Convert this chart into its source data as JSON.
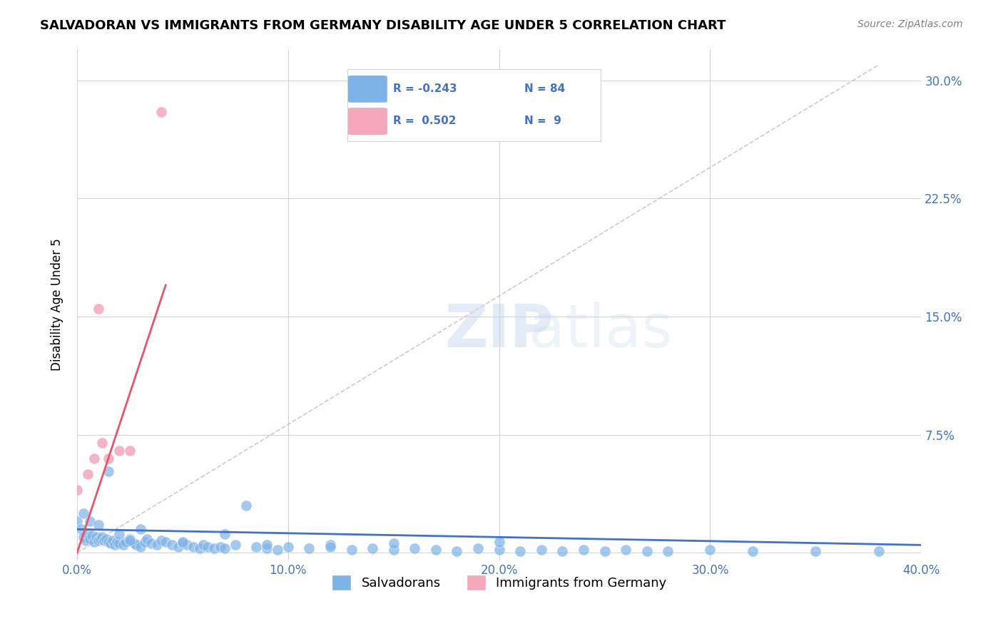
{
  "title": "SALVADORAN VS IMMIGRANTS FROM GERMANY DISABILITY AGE UNDER 5 CORRELATION CHART",
  "source": "Source: ZipAtlas.com",
  "xlabel": "",
  "ylabel": "Disability Age Under 5",
  "xlim": [
    0.0,
    0.4
  ],
  "ylim": [
    -0.005,
    0.32
  ],
  "xticks": [
    0.0,
    0.1,
    0.2,
    0.3,
    0.4
  ],
  "xticklabels": [
    "0.0%",
    "10.0%",
    "20.0%",
    "30.0%",
    "40.0%"
  ],
  "yticks": [
    0.0,
    0.075,
    0.15,
    0.225,
    0.3
  ],
  "yticklabels": [
    "",
    "7.5%",
    "15.0%",
    "22.5%",
    "30.0%"
  ],
  "legend_r1": "R = -0.243",
  "legend_n1": "N = 84",
  "legend_r2": "R =  0.502",
  "legend_n2": "N =  9",
  "blue_color": "#7EB3E8",
  "pink_color": "#F4A7B9",
  "trendline_blue_color": "#4472C4",
  "trendline_pink_color": "#E8546A",
  "trendline_dashed_color": "#C0A0A0",
  "watermark": "ZIPatlas",
  "salvadorans_x": [
    0.0,
    0.002,
    0.003,
    0.004,
    0.005,
    0.006,
    0.007,
    0.008,
    0.009,
    0.01,
    0.011,
    0.012,
    0.013,
    0.014,
    0.015,
    0.016,
    0.017,
    0.018,
    0.019,
    0.02,
    0.022,
    0.023,
    0.025,
    0.027,
    0.028,
    0.03,
    0.032,
    0.033,
    0.035,
    0.038,
    0.04,
    0.042,
    0.045,
    0.048,
    0.05,
    0.052,
    0.055,
    0.058,
    0.06,
    0.062,
    0.065,
    0.068,
    0.07,
    0.075,
    0.08,
    0.085,
    0.09,
    0.095,
    0.1,
    0.11,
    0.12,
    0.13,
    0.14,
    0.15,
    0.16,
    0.17,
    0.18,
    0.19,
    0.2,
    0.21,
    0.22,
    0.23,
    0.24,
    0.25,
    0.26,
    0.27,
    0.28,
    0.3,
    0.32,
    0.35,
    0.38,
    0.003,
    0.006,
    0.01,
    0.015,
    0.02,
    0.025,
    0.03,
    0.05,
    0.07,
    0.09,
    0.12,
    0.15,
    0.2
  ],
  "salvadorans_y": [
    0.02,
    0.015,
    0.01,
    0.008,
    0.012,
    0.009,
    0.011,
    0.007,
    0.01,
    0.008,
    0.009,
    0.01,
    0.008,
    0.009,
    0.007,
    0.006,
    0.008,
    0.005,
    0.007,
    0.006,
    0.005,
    0.007,
    0.009,
    0.006,
    0.005,
    0.004,
    0.007,
    0.009,
    0.006,
    0.005,
    0.008,
    0.007,
    0.005,
    0.004,
    0.006,
    0.005,
    0.004,
    0.003,
    0.005,
    0.004,
    0.003,
    0.004,
    0.003,
    0.005,
    0.03,
    0.004,
    0.003,
    0.002,
    0.004,
    0.003,
    0.005,
    0.002,
    0.003,
    0.002,
    0.003,
    0.002,
    0.001,
    0.003,
    0.002,
    0.001,
    0.002,
    0.001,
    0.002,
    0.001,
    0.002,
    0.001,
    0.001,
    0.002,
    0.001,
    0.001,
    0.001,
    0.025,
    0.02,
    0.018,
    0.052,
    0.012,
    0.008,
    0.015,
    0.007,
    0.012,
    0.005,
    0.004,
    0.006,
    0.007
  ],
  "germany_x": [
    0.0,
    0.005,
    0.008,
    0.01,
    0.012,
    0.015,
    0.02,
    0.025,
    0.04
  ],
  "germany_y": [
    0.04,
    0.05,
    0.06,
    0.155,
    0.07,
    0.06,
    0.065,
    0.065,
    0.28
  ],
  "blue_trend_x": [
    0.0,
    0.4
  ],
  "blue_trend_y": [
    0.015,
    0.005
  ],
  "pink_trend_x": [
    0.0,
    0.042
  ],
  "pink_trend_y": [
    0.0,
    0.17
  ],
  "dashed_trend_x": [
    0.0,
    0.38
  ],
  "dashed_trend_y": [
    0.0,
    0.31
  ]
}
